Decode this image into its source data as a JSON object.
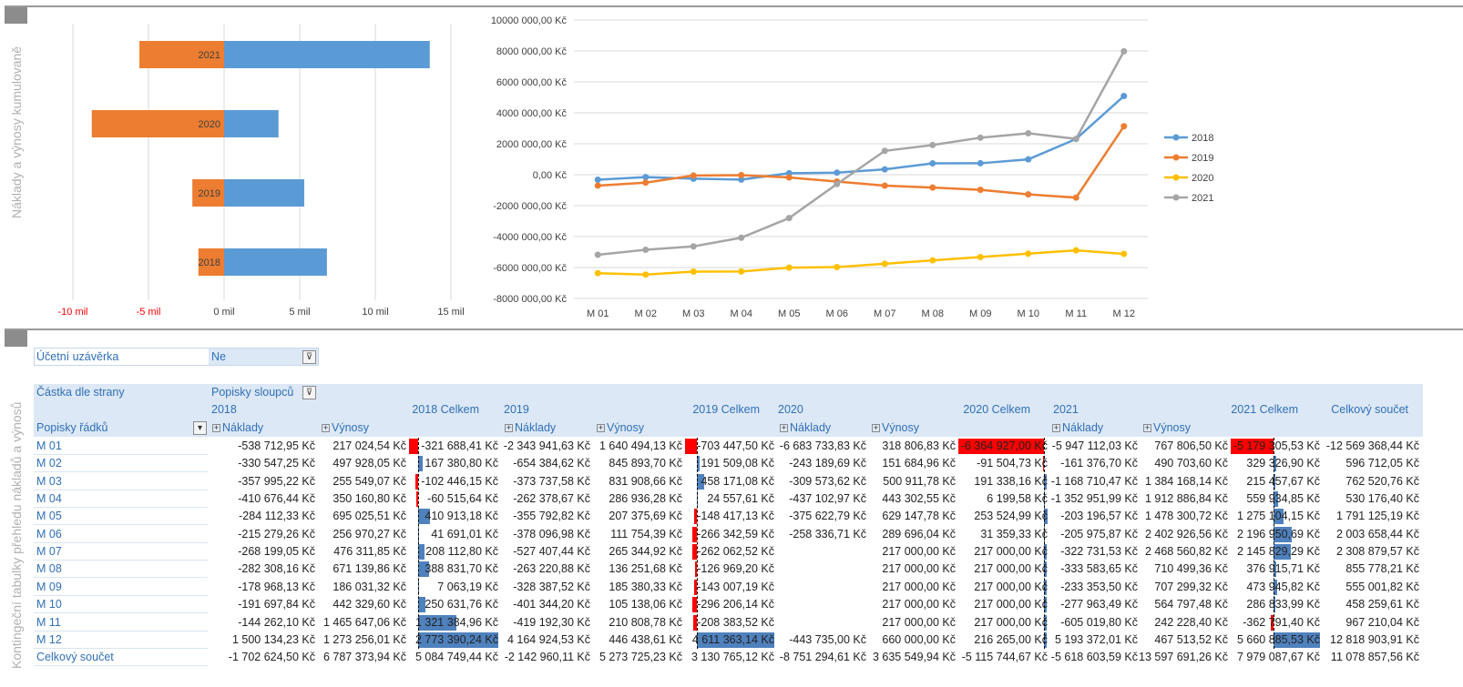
{
  "sections": {
    "charts_title": "Náklady a výnosy kumulovaně",
    "pivot_title": "Kontingeční tabulky přehledu nákladů a výnosů"
  },
  "colors": {
    "cost": "#ed7d31",
    "revenue": "#5b9bd5",
    "y2018": "#5b9bd5",
    "y2019": "#ed7d31",
    "y2020": "#ffc000",
    "y2021": "#a5a5a5",
    "header_band": "#dce8f5",
    "neg_bar": "#ff0000",
    "pos_bar": "#4f81bd",
    "label_blue": "#2f6fb6"
  },
  "chart_data": [
    {
      "type": "bar",
      "orientation": "horizontal",
      "stacked": "diverging",
      "categories": [
        "2021",
        "2020",
        "2019",
        "2018"
      ],
      "series": [
        {
          "values": [
            -5.6,
            -8.75,
            -2.1,
            -1.7
          ]
        },
        {
          "values": [
            13.6,
            3.6,
            5.3,
            6.8
          ]
        }
      ],
      "x_ticks": [
        "-10 mil",
        "-5 mil",
        "0 mil",
        "5 mil",
        "10 mil",
        "15 mil"
      ],
      "x_tick_values": [
        -10,
        -5,
        0,
        5,
        10,
        15
      ],
      "xlim": [
        -10,
        15
      ],
      "negative_tick_color": "#ff0000",
      "grid": true
    },
    {
      "type": "line",
      "x": [
        "M 01",
        "M 02",
        "M 03",
        "M 04",
        "M 05",
        "M 06",
        "M 07",
        "M 08",
        "M 09",
        "M 10",
        "M 11",
        "M 12"
      ],
      "series": [
        {
          "name": "2018",
          "values": [
            -321688,
            -154054,
            -256508,
            -317065,
            93848,
            134859,
            343071,
            731951,
            739014,
            989647,
            2310996,
            5084749
          ]
        },
        {
          "name": "2019",
          "values": [
            -703447,
            -511938,
            -53766,
            -29209,
            -177620,
            -443962,
            -706025,
            -832995,
            -975952,
            -1272158,
            -1480541,
            3130765
          ]
        },
        {
          "name": "2020",
          "values": [
            -6364927,
            -6456432,
            -6265094,
            -6258895,
            -6005371,
            -5974012,
            -5757012,
            -5540012,
            -5323012,
            -5106012,
            -4889012,
            -5115745
          ]
        },
        {
          "name": "2021",
          "values": [
            -5179306,
            -4849979,
            -4634522,
            -4074587,
            -2800483,
            -603792,
            1542037,
            1918954,
            2392900,
            2679734,
            2317033,
            7979088
          ]
        }
      ],
      "y_ticks": [
        "10000 000,00 Kč",
        "8000 000,00 Kč",
        "6000 000,00 Kč",
        "4000 000,00 Kč",
        "2000 000,00 Kč",
        "0,00 Kč",
        "-2000 000,00 Kč",
        "-4000 000,00 Kč",
        "-6000 000,00 Kč",
        "-8000 000,00 Kč"
      ],
      "ylim": [
        -8000000,
        10000000
      ],
      "legend": "right",
      "grid": true
    }
  ],
  "pivot": {
    "filter_label": "Účetní uzávěrka",
    "filter_value": "Ne",
    "values_label": "Částka dle strany",
    "columns_label": "Popisky sloupců",
    "rows_label": "Popisky řádků",
    "year_headers": [
      "2018",
      "2018 Celkem",
      "2019",
      "2019 Celkem",
      "2020",
      "2020 Celkem",
      "2021",
      "2021 Celkem",
      "Celkový součet"
    ],
    "sub_headers": [
      "Náklady",
      "Výnosy",
      "Náklady",
      "Výnosy",
      "Náklady",
      "Výnosy",
      "Náklady",
      "Výnosy"
    ],
    "rows": [
      {
        "label": "M 01",
        "v": [
          "-538 712,95 Kč",
          "217 024,54 Kč",
          "-321 688,41 Kč",
          "-2 343 941,63 Kč",
          "1 640 494,13 Kč",
          "-703 447,50 Kč",
          "-6 683 733,83 Kč",
          "318 806,83 Kč",
          "-6 364 927,00 Kč",
          "-5 947 112,03 Kč",
          "767 806,50 Kč",
          "-5 179 305,53 Kč",
          "-12 569 368,44 Kč"
        ]
      },
      {
        "label": "M 02",
        "v": [
          "-330 547,25 Kč",
          "497 928,05 Kč",
          "167 380,80 Kč",
          "-654 384,62 Kč",
          "845 893,70 Kč",
          "191 509,08 Kč",
          "-243 189,69 Kč",
          "151 684,96 Kč",
          "-91 504,73 Kč",
          "-161 376,70 Kč",
          "490 703,60 Kč",
          "329 326,90 Kč",
          "596 712,05 Kč"
        ]
      },
      {
        "label": "M 03",
        "v": [
          "-357 995,22 Kč",
          "255 549,07 Kč",
          "-102 446,15 Kč",
          "-373 737,58 Kč",
          "831 908,66 Kč",
          "458 171,08 Kč",
          "-309 573,62 Kč",
          "500 911,78 Kč",
          "191 338,16 Kč",
          "-1 168 710,47 Kč",
          "1 384 168,14 Kč",
          "215 457,67 Kč",
          "762 520,76 Kč"
        ]
      },
      {
        "label": "M 04",
        "v": [
          "-410 676,44 Kč",
          "350 160,80 Kč",
          "-60 515,64 Kč",
          "-262 378,67 Kč",
          "286 936,28 Kč",
          "24 557,61 Kč",
          "-437 102,97 Kč",
          "443 302,55 Kč",
          "6 199,58 Kč",
          "-1 352 951,99 Kč",
          "1 912 886,84 Kč",
          "559 934,85 Kč",
          "530 176,40 Kč"
        ]
      },
      {
        "label": "M 05",
        "v": [
          "-284 112,33 Kč",
          "695 025,51 Kč",
          "410 913,18 Kč",
          "-355 792,82 Kč",
          "207 375,69 Kč",
          "-148 417,13 Kč",
          "-375 622,79 Kč",
          "629 147,78 Kč",
          "253 524,99 Kč",
          "-203 196,57 Kč",
          "1 478 300,72 Kč",
          "1 275 104,15 Kč",
          "1 791 125,19 Kč"
        ]
      },
      {
        "label": "M 06",
        "v": [
          "-215 279,26 Kč",
          "256 970,27 Kč",
          "41 691,01 Kč",
          "-378 096,98 Kč",
          "111 754,39 Kč",
          "-266 342,59 Kč",
          "-258 336,71 Kč",
          "289 696,04 Kč",
          "31 359,33 Kč",
          "-205 975,87 Kč",
          "2 402 926,56 Kč",
          "2 196 950,69 Kč",
          "2 003 658,44 Kč"
        ]
      },
      {
        "label": "M 07",
        "v": [
          "-268 199,05 Kč",
          "476 311,85 Kč",
          "208 112,80 Kč",
          "-527 407,44 Kč",
          "265 344,92 Kč",
          "-262 062,52 Kč",
          "",
          "217 000,00 Kč",
          "217 000,00 Kč",
          "-322 731,53 Kč",
          "2 468 560,82 Kč",
          "2 145 829,29 Kč",
          "2 308 879,57 Kč"
        ]
      },
      {
        "label": "M 08",
        "v": [
          "-282 308,16 Kč",
          "671 139,86 Kč",
          "388 831,70 Kč",
          "-263 220,88 Kč",
          "136 251,68 Kč",
          "-126 969,20 Kč",
          "",
          "217 000,00 Kč",
          "217 000,00 Kč",
          "-333 583,65 Kč",
          "710 499,36 Kč",
          "376 915,71 Kč",
          "855 778,21 Kč"
        ]
      },
      {
        "label": "M 09",
        "v": [
          "-178 968,13 Kč",
          "186 031,32 Kč",
          "7 063,19 Kč",
          "-328 387,52 Kč",
          "185 380,33 Kč",
          "-143 007,19 Kč",
          "",
          "217 000,00 Kč",
          "217 000,00 Kč",
          "-233 353,50 Kč",
          "707 299,32 Kč",
          "473 945,82 Kč",
          "555 001,82 Kč"
        ]
      },
      {
        "label": "M 10",
        "v": [
          "-191 697,84 Kč",
          "442 329,60 Kč",
          "250 631,76 Kč",
          "-401 344,20 Kč",
          "105 138,06 Kč",
          "-296 206,14 Kč",
          "",
          "217 000,00 Kč",
          "217 000,00 Kč",
          "-277 963,49 Kč",
          "564 797,48 Kč",
          "286 833,99 Kč",
          "458 259,61 Kč"
        ]
      },
      {
        "label": "M 11",
        "v": [
          "-144 262,10 Kč",
          "1 465 647,06 Kč",
          "1 321 384,96 Kč",
          "-419 192,30 Kč",
          "210 808,78 Kč",
          "-208 383,52 Kč",
          "",
          "217 000,00 Kč",
          "217 000,00 Kč",
          "-605 019,80 Kč",
          "242 228,40 Kč",
          "-362 791,40 Kč",
          "967 210,04 Kč"
        ]
      },
      {
        "label": "M 12",
        "v": [
          "1 500 134,23 Kč",
          "1 273 256,01 Kč",
          "2 773 390,24 Kč",
          "4 164 924,53 Kč",
          "446 438,61 Kč",
          "4 611 363,14 Kč",
          "-443 735,00 Kč",
          "660 000,00 Kč",
          "216 265,00 Kč",
          "5 193 372,01 Kč",
          "467 513,52 Kč",
          "5 660 885,53 Kč",
          "12 818 903,91 Kč"
        ]
      },
      {
        "label": "Celkový součet",
        "v": [
          "-1 702 624,50 Kč",
          "6 787 373,94 Kč",
          "5 084 749,44 Kč",
          "-2 142 960,11 Kč",
          "5 273 725,23 Kč",
          "3 130 765,12 Kč",
          "-8 751 294,61 Kč",
          "3 635 549,94 Kč",
          "-5 115 744,67 Kč",
          "-5 618 603,59 Kč",
          "13 597 691,26 Kč",
          "7 979 087,67 Kč",
          "11 078 857,56 Kč"
        ]
      }
    ],
    "total_bars": [
      [
        -321688,
        167381,
        -102446,
        -60516,
        410913,
        41691,
        208113,
        388832,
        7063,
        250632,
        1321385,
        2773390
      ],
      [
        -703448,
        191509,
        458171,
        24558,
        -148417,
        -266343,
        -262063,
        -126969,
        -143007,
        -296206,
        -208384,
        4611363
      ],
      [
        -6364927,
        -91505,
        191338,
        6200,
        253525,
        31359,
        217000,
        217000,
        217000,
        217000,
        217000,
        216265
      ],
      [
        -5179306,
        329327,
        215458,
        559935,
        1275104,
        2196951,
        2145829,
        376916,
        473946,
        286834,
        -362791,
        5660886
      ]
    ]
  }
}
